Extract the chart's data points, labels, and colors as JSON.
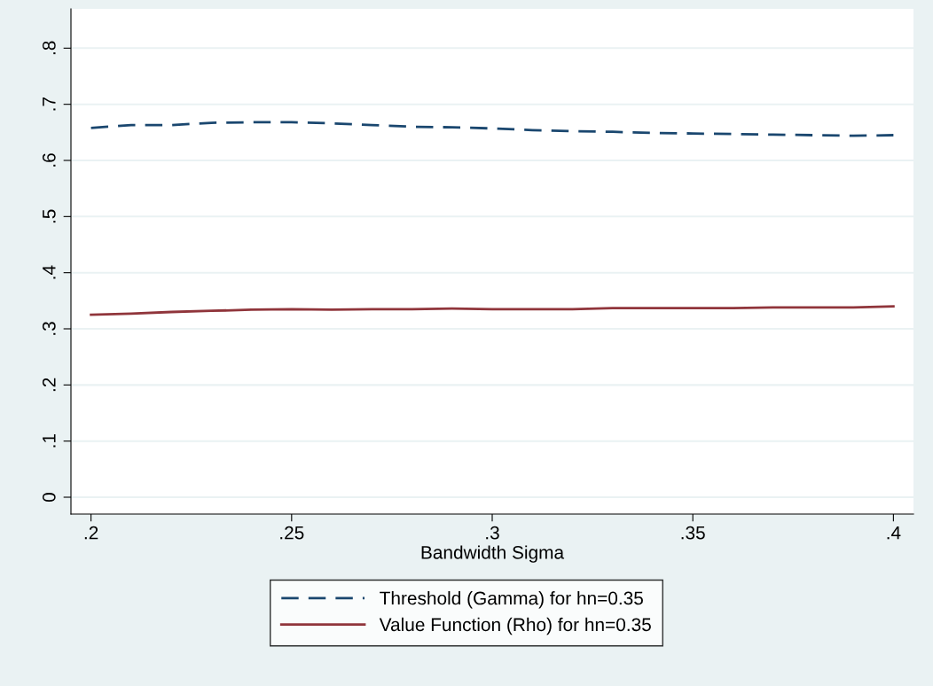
{
  "chart_data": {
    "type": "line",
    "xlabel": "Bandwidth Sigma",
    "x": [
      0.2,
      0.21,
      0.22,
      0.23,
      0.24,
      0.25,
      0.26,
      0.27,
      0.28,
      0.29,
      0.3,
      0.31,
      0.32,
      0.33,
      0.34,
      0.35,
      0.36,
      0.37,
      0.38,
      0.39,
      0.4
    ],
    "series": [
      {
        "name": "Threshold (Gamma) for hn=0.35",
        "color": "#1a476f",
        "line_style": "dashed",
        "values": [
          0.658,
          0.663,
          0.663,
          0.667,
          0.668,
          0.668,
          0.666,
          0.663,
          0.66,
          0.659,
          0.657,
          0.654,
          0.652,
          0.651,
          0.649,
          0.648,
          0.647,
          0.646,
          0.645,
          0.644,
          0.645
        ]
      },
      {
        "name": "Value Function (Rho) for hn=0.35",
        "color": "#90353b",
        "line_style": "solid",
        "values": [
          0.325,
          0.327,
          0.33,
          0.332,
          0.334,
          0.335,
          0.334,
          0.335,
          0.335,
          0.336,
          0.335,
          0.335,
          0.335,
          0.337,
          0.337,
          0.337,
          0.337,
          0.338,
          0.338,
          0.338,
          0.34
        ]
      }
    ],
    "xlim": [
      0.195,
      0.405
    ],
    "xticks": [
      {
        "value": 0.2,
        "label": ".2"
      },
      {
        "value": 0.25,
        "label": ".25"
      },
      {
        "value": 0.3,
        "label": ".3"
      },
      {
        "value": 0.35,
        "label": ".35"
      },
      {
        "value": 0.4,
        "label": ".4"
      }
    ],
    "ylim": [
      -0.03,
      0.87
    ],
    "yticks": [
      0,
      {
        "value": 0.1,
        "label": ".1"
      },
      {
        "value": 0.2,
        "label": ".2"
      },
      {
        "value": 0.3,
        "label": ".3"
      },
      {
        "value": 0.4,
        "label": ".4"
      },
      {
        "value": 0.5,
        "label": ".5"
      },
      {
        "value": 0.6,
        "label": ".6"
      },
      {
        "value": 0.7,
        "label": ".7"
      },
      {
        "value": 0.8,
        "label": ".8"
      }
    ],
    "grid": "y",
    "legend": "bottom"
  }
}
